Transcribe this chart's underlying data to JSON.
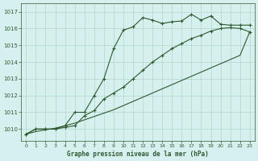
{
  "title": "Graphe pression niveau de la mer (hPa)",
  "xlim": [
    -0.5,
    23.5
  ],
  "ylim": [
    1009.3,
    1017.5
  ],
  "yticks": [
    1010,
    1011,
    1012,
    1013,
    1014,
    1015,
    1016,
    1017
  ],
  "xticks": [
    0,
    1,
    2,
    3,
    4,
    5,
    6,
    7,
    8,
    9,
    10,
    11,
    12,
    13,
    14,
    15,
    16,
    17,
    18,
    19,
    20,
    21,
    22,
    23
  ],
  "bg_color": "#d6f0f0",
  "grid_color": "#b0d8cc",
  "line_color": "#2d5a2d",
  "s1": [
    1009.7,
    1010.0,
    1010.0,
    1010.0,
    1010.2,
    1011.0,
    1011.0,
    1012.0,
    1013.0,
    1014.8,
    1015.9,
    1016.1,
    1016.65,
    1016.5,
    1016.3,
    1016.4,
    1016.45,
    1016.85,
    1016.5,
    1016.75,
    1016.25,
    1016.2,
    1016.2,
    1016.2
  ],
  "s2": [
    1009.7,
    1010.0,
    1010.0,
    1010.0,
    1010.1,
    1010.2,
    1010.8,
    1011.1,
    1011.8,
    1012.15,
    1012.5,
    1013.0,
    1013.5,
    1014.0,
    1014.4,
    1014.8,
    1015.1,
    1015.4,
    1015.6,
    1015.85,
    1016.0,
    1016.05,
    1016.0,
    1015.8
  ],
  "s3": [
    1009.7,
    1009.85,
    1009.95,
    1010.05,
    1010.2,
    1010.35,
    1010.55,
    1010.75,
    1010.95,
    1011.15,
    1011.4,
    1011.65,
    1011.9,
    1012.15,
    1012.4,
    1012.65,
    1012.9,
    1013.15,
    1013.4,
    1013.65,
    1013.9,
    1014.15,
    1014.4,
    1015.8
  ]
}
